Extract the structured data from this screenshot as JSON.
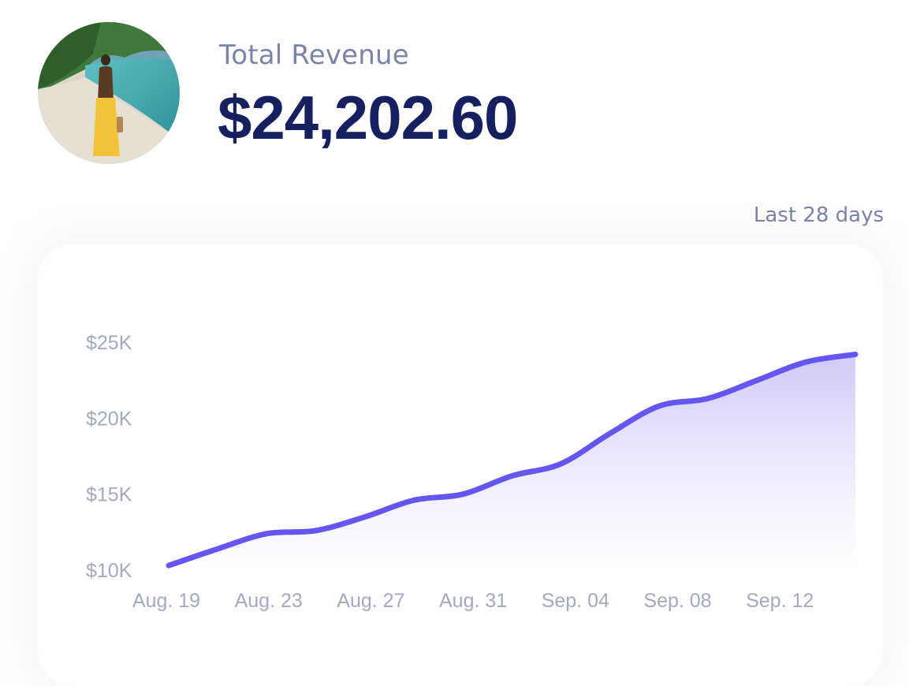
{
  "header": {
    "title": "Total Revenue",
    "value": "$24,202.60"
  },
  "range_label": "Last 28 days",
  "colors": {
    "line": "#6456f0",
    "area_top": "#cdc7f7",
    "title_text": "#161f5f",
    "muted_text": "#7a84a8"
  },
  "chart_data": {
    "type": "area",
    "title": "",
    "xlabel": "",
    "ylabel": "",
    "ylim": [
      10000,
      25000
    ],
    "yticks": [
      {
        "value": 25000,
        "label": "$25K"
      },
      {
        "value": 20000,
        "label": "$20K"
      },
      {
        "value": 15000,
        "label": "$15K"
      },
      {
        "value": 10000,
        "label": "$10K"
      }
    ],
    "xticks": [
      "Aug. 19",
      "Aug. 23",
      "Aug. 27",
      "Aug. 31",
      "Sep. 04",
      "Sep. 08",
      "Sep. 12"
    ],
    "x": [
      "Aug. 19",
      "Aug. 21",
      "Aug. 23",
      "Aug. 25",
      "Aug. 27",
      "Aug. 29",
      "Aug. 31",
      "Sep. 02",
      "Sep. 04",
      "Sep. 06",
      "Sep. 08",
      "Sep. 10",
      "Sep. 12",
      "Sep. 14",
      "Sep. 15"
    ],
    "values": [
      10300,
      11400,
      12400,
      12600,
      13500,
      14600,
      15000,
      16200,
      17000,
      19000,
      20800,
      21300,
      22500,
      23700,
      24200
    ],
    "grid": false,
    "legend": "none"
  }
}
